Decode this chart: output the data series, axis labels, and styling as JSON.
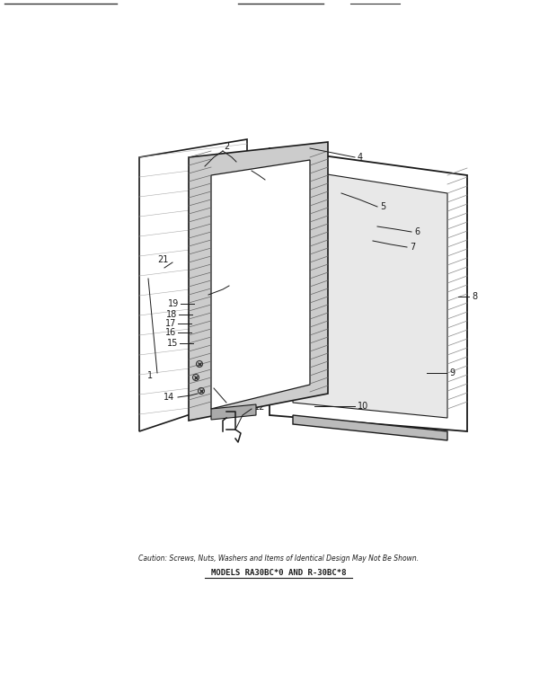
{
  "note_text": "Caution: Screws, Nuts, Washers and Items of Identical Design May Not Be Shown.",
  "models_text": "MODELS RA30BC*0 AND R-30BC*8",
  "background_color": "#ffffff",
  "line_color": "#1a1a1a"
}
